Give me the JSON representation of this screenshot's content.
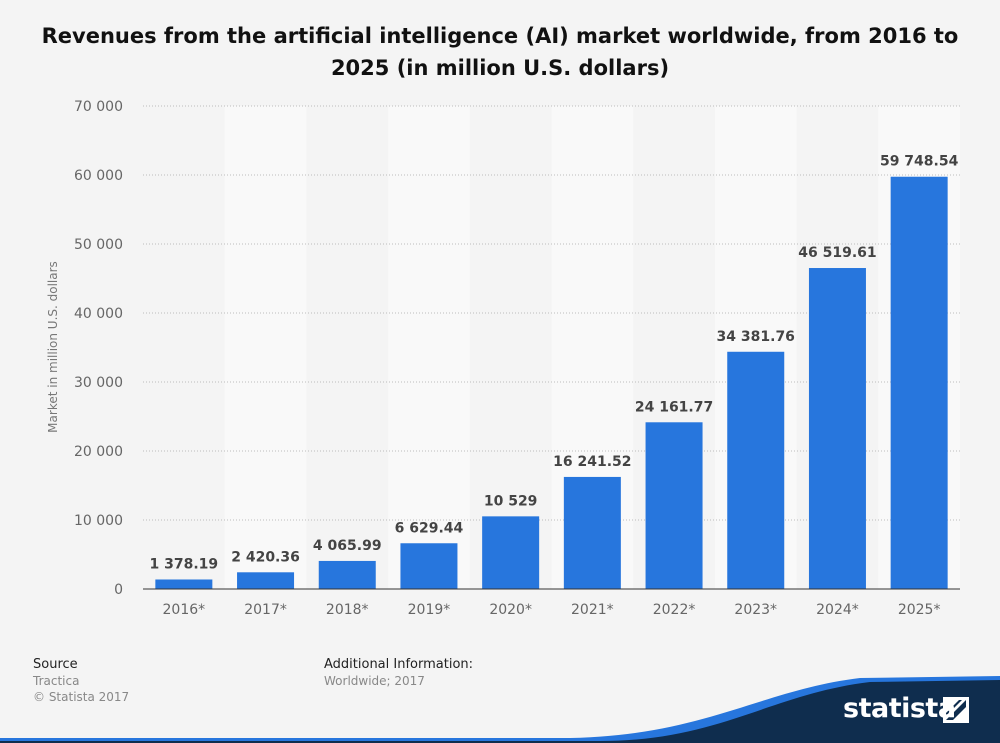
{
  "title": "Revenues from the artificial intelligence (AI) market worldwide, from 2016 to 2025 (in million U.S. dollars)",
  "colors": {
    "bar": "#2776dd",
    "band": "#f9f9f9",
    "background": "#f4f4f4",
    "brand_dark": "#0f2d4e",
    "brand_blue": "#2776dd"
  },
  "chart_data": {
    "type": "bar",
    "title": "Revenues from the artificial intelligence (AI) market worldwide, from 2016 to 2025 (in million U.S. dollars)",
    "xlabel": "",
    "ylabel": "Market in million U.S. dollars",
    "categories": [
      "2016*",
      "2017*",
      "2018*",
      "2019*",
      "2020*",
      "2021*",
      "2022*",
      "2023*",
      "2024*",
      "2025*"
    ],
    "values": [
      1378.19,
      2420.36,
      4065.99,
      6629.44,
      10529,
      16241.52,
      24161.77,
      34381.76,
      46519.61,
      59748.54
    ],
    "value_labels": [
      "1 378.19",
      "2 420.36",
      "4 065.99",
      "6 629.44",
      "10 529",
      "16 241.52",
      "24 161.77",
      "34 381.76",
      "46 519.61",
      "59 748.54"
    ],
    "ylim": [
      0,
      70000
    ],
    "yticks": [
      0,
      10000,
      20000,
      30000,
      40000,
      50000,
      60000,
      70000
    ],
    "ytick_labels": [
      "0",
      "10 000",
      "20 000",
      "30 000",
      "40 000",
      "50 000",
      "60 000",
      "70 000"
    ],
    "grid": true,
    "legend": "none"
  },
  "footer": {
    "source_heading": "Source",
    "source_name": "Tractica",
    "copyright": "© Statista 2017",
    "info_heading": "Additional Information:",
    "info_text": "Worldwide; 2017"
  },
  "brand": {
    "name": "statista"
  }
}
